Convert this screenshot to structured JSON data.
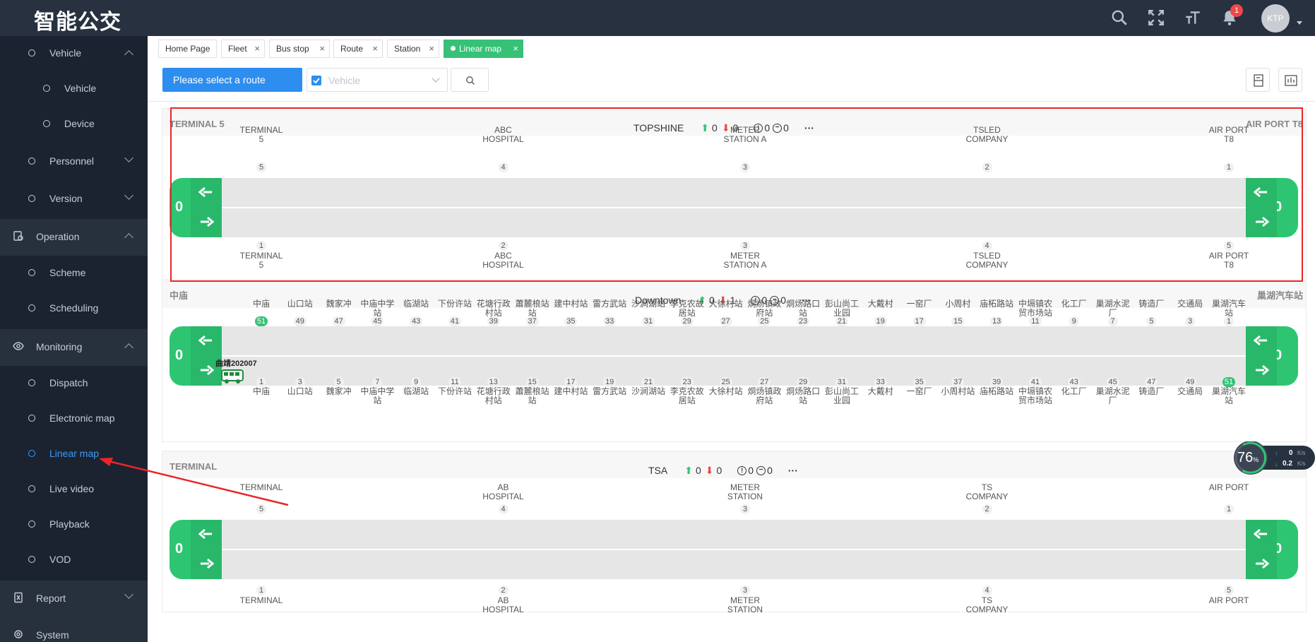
{
  "app": {
    "title": "智能公交"
  },
  "header": {
    "notification_count": "1",
    "avatar_text": "KTP"
  },
  "sidebar": {
    "items": [
      {
        "label": "Vehicle",
        "level": "sub",
        "chevron": "up"
      },
      {
        "label": "Vehicle",
        "level": "leaf"
      },
      {
        "label": "Device",
        "level": "leaf"
      },
      {
        "label": "Personnel",
        "level": "sub",
        "chevron": "down"
      },
      {
        "label": "Version",
        "level": "sub",
        "chevron": "down"
      },
      {
        "label": "Operation",
        "level": "group",
        "chevron": "up",
        "icon": "operation-icon"
      },
      {
        "label": "Scheme",
        "level": "sub"
      },
      {
        "label": "Scheduling",
        "level": "sub"
      },
      {
        "label": "Monitoring",
        "level": "group",
        "chevron": "up",
        "icon": "eye-icon"
      },
      {
        "label": "Dispatch",
        "level": "sub"
      },
      {
        "label": "Electronic map",
        "level": "sub"
      },
      {
        "label": "Linear map",
        "level": "sub",
        "active": true
      },
      {
        "label": "Live video",
        "level": "sub"
      },
      {
        "label": "Playback",
        "level": "sub"
      },
      {
        "label": "VOD",
        "level": "sub"
      },
      {
        "label": "Report",
        "level": "group",
        "chevron": "down",
        "icon": "report-icon"
      },
      {
        "label": "System",
        "level": "group",
        "icon": "system-icon"
      }
    ]
  },
  "tabs": [
    {
      "label": "Home Page",
      "closable": false
    },
    {
      "label": "Fleet",
      "closable": true
    },
    {
      "label": "Bus stop",
      "closable": true
    },
    {
      "label": "Route",
      "closable": true
    },
    {
      "label": "Station",
      "closable": true
    },
    {
      "label": "Linear map",
      "closable": true,
      "active": true
    }
  ],
  "toolbar": {
    "route_button": "Please select a route",
    "vehicle_placeholder": "Vehicle"
  },
  "routes": [
    {
      "left_terminal": "TERMINAL 5",
      "right_terminal": "AIR PORT T8",
      "name": "TOPSHINE",
      "up_count": "0",
      "down_count": "0",
      "alarm_count": "0",
      "offline_count": "0",
      "top_count": "0",
      "bottom_count": "0",
      "upper_stations": [
        {
          "name": "TERMINAL 5",
          "num": "5"
        },
        {
          "name": "ABC HOSPITAL",
          "num": "4"
        },
        {
          "name": "METER STATION A",
          "num": "3"
        },
        {
          "name": "TSLED COMPANY",
          "num": "2"
        },
        {
          "name": "AIR PORT T8",
          "num": "1"
        }
      ],
      "lower_stations": [
        {
          "name": "TERMINAL 5",
          "num": "1"
        },
        {
          "name": "ABC HOSPITAL",
          "num": "2"
        },
        {
          "name": "METER STATION A",
          "num": "3"
        },
        {
          "name": "TSLED COMPANY",
          "num": "4"
        },
        {
          "name": "AIR PORT T8",
          "num": "5"
        }
      ]
    },
    {
      "left_terminal": "中庙",
      "right_terminal": "巢湖汽车站",
      "name": "Downtown",
      "up_count": "0",
      "down_count": "1",
      "alarm_count": "0",
      "offline_count": "0",
      "top_count": "0",
      "bottom_count": "0",
      "bus_label": "曲靖202007",
      "upper_stations": [
        {
          "name": "中庙",
          "num": "51",
          "hl": true
        },
        {
          "name": "山口站",
          "num": "49"
        },
        {
          "name": "魏家冲",
          "num": "47"
        },
        {
          "name": "中庙中学站",
          "num": "45"
        },
        {
          "name": "临湖站",
          "num": "43"
        },
        {
          "name": "下份许站",
          "num": "41"
        },
        {
          "name": "花塘行政村站",
          "num": "39"
        },
        {
          "name": "蕭麓桹站站",
          "num": "37"
        },
        {
          "name": "建中村站",
          "num": "35"
        },
        {
          "name": "雷方武站",
          "num": "33"
        },
        {
          "name": "沙涧湖站",
          "num": "31"
        },
        {
          "name": "李克农故居站",
          "num": "29"
        },
        {
          "name": "大徐村站",
          "num": "27"
        },
        {
          "name": "烔炀镇政府站",
          "num": "25"
        },
        {
          "name": "烔炀路口站",
          "num": "23"
        },
        {
          "name": "彭山尚工业园",
          "num": "21"
        },
        {
          "name": "大戴村",
          "num": "19"
        },
        {
          "name": "一窑厂",
          "num": "17"
        },
        {
          "name": "小周村",
          "num": "15"
        },
        {
          "name": "庙柘路站",
          "num": "13"
        },
        {
          "name": "中塥镇农贸市场站",
          "num": "11"
        },
        {
          "name": "化工厂",
          "num": "9"
        },
        {
          "name": "巢湖水泥厂",
          "num": "7"
        },
        {
          "name": "铸造厂",
          "num": "5"
        },
        {
          "name": "交通局",
          "num": "3"
        },
        {
          "name": "巢湖汽车站",
          "num": "1"
        }
      ],
      "lower_stations": [
        {
          "name": "中庙",
          "num": "1"
        },
        {
          "name": "山口站",
          "num": "3"
        },
        {
          "name": "魏家冲",
          "num": "5"
        },
        {
          "name": "中庙中学站",
          "num": "7"
        },
        {
          "name": "临湖站",
          "num": "9"
        },
        {
          "name": "下份许站",
          "num": "11"
        },
        {
          "name": "花塘行政村站",
          "num": "13"
        },
        {
          "name": "蕭麓桹站站",
          "num": "15"
        },
        {
          "name": "建中村站",
          "num": "17"
        },
        {
          "name": "雷方武站",
          "num": "19"
        },
        {
          "name": "沙涧湖站",
          "num": "21"
        },
        {
          "name": "李克农故居站",
          "num": "23"
        },
        {
          "name": "大徐村站",
          "num": "25"
        },
        {
          "name": "烔炀镇政府站",
          "num": "27"
        },
        {
          "name": "烔炀路口站",
          "num": "29"
        },
        {
          "name": "彭山尚工业园",
          "num": "31"
        },
        {
          "name": "大戴村",
          "num": "33"
        },
        {
          "name": "一窑厂",
          "num": "35"
        },
        {
          "name": "小周村站",
          "num": "37"
        },
        {
          "name": "庙柘路站",
          "num": "39"
        },
        {
          "name": "中塥镇农贸市场站",
          "num": "41"
        },
        {
          "name": "化工厂",
          "num": "43"
        },
        {
          "name": "巢湖水泥厂",
          "num": "45"
        },
        {
          "name": "铸造厂",
          "num": "47"
        },
        {
          "name": "交通局",
          "num": "49"
        },
        {
          "name": "巢湖汽车站",
          "num": "51",
          "hl": true
        }
      ]
    },
    {
      "left_terminal": "TERMINAL",
      "right_terminal": "",
      "name": "TSA",
      "up_count": "0",
      "down_count": "0",
      "alarm_count": "0",
      "offline_count": "0",
      "top_count": "0",
      "bottom_count": "0",
      "upper_stations": [
        {
          "name": "TERMINAL",
          "num": "5"
        },
        {
          "name": "AB HOSPITAL",
          "num": "4"
        },
        {
          "name": "METER STATION",
          "num": "3"
        },
        {
          "name": "TS COMPANY",
          "num": "2"
        },
        {
          "name": "AIR PORT",
          "num": "1"
        }
      ],
      "lower_stations": [
        {
          "name": "TERMINAL",
          "num": "1"
        },
        {
          "name": "AB HOSPITAL",
          "num": "2"
        },
        {
          "name": "METER STATION",
          "num": "3"
        },
        {
          "name": "TS COMPANY",
          "num": "4"
        },
        {
          "name": "AIR PORT",
          "num": "5"
        }
      ]
    }
  ],
  "speed_widget": {
    "percent": "76",
    "percent_unit": "%",
    "upload": "0",
    "download": "0.2",
    "unit": "K/s"
  },
  "colors": {
    "accent": "#2e8ef0",
    "green": "#2ec572",
    "red": "#f04848",
    "highlight_box": "#e8262a"
  }
}
